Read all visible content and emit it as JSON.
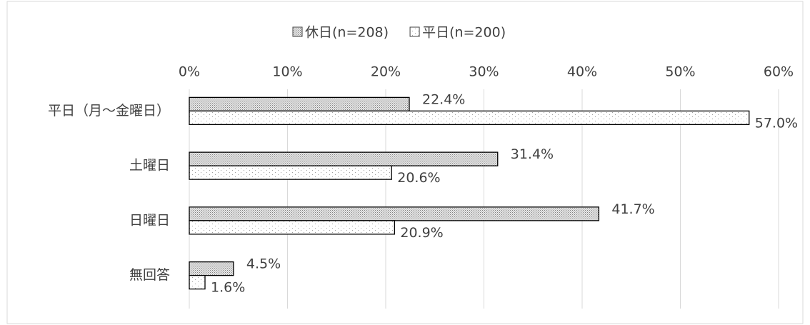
{
  "chart_data": {
    "type": "hbar",
    "categories": [
      "平日（月～金曜日）",
      "土曜日",
      "日曜日",
      "無回答"
    ],
    "series": [
      {
        "name": "休日(n=208)",
        "color": "#c8c8c8",
        "values": [
          22.4,
          31.4,
          41.7,
          4.5
        ],
        "value_labels": [
          "22.4%",
          "31.4%",
          "41.7%",
          "4.5%"
        ]
      },
      {
        "name": "平日(n=200)",
        "color": "#ffffff",
        "values": [
          57.0,
          20.6,
          20.9,
          1.6
        ],
        "value_labels": [
          "57.0%",
          "20.6%",
          "20.9%",
          "1.6%"
        ]
      }
    ],
    "xlim": [
      0,
      60
    ],
    "xticks": [
      {
        "value": 0,
        "label": "0%"
      },
      {
        "value": 10,
        "label": "10%"
      },
      {
        "value": 20,
        "label": "20%"
      },
      {
        "value": 30,
        "label": "30%"
      },
      {
        "value": 40,
        "label": "40%"
      },
      {
        "value": 50,
        "label": "50%"
      },
      {
        "value": 60,
        "label": "60%"
      }
    ],
    "grid": true,
    "legend": "top"
  }
}
